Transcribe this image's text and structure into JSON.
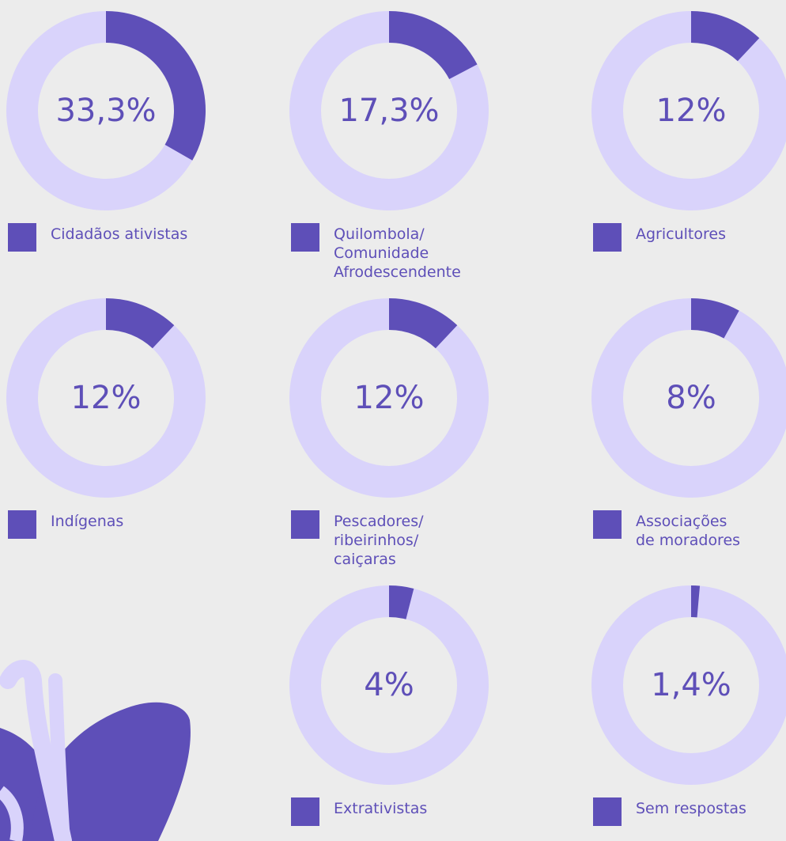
{
  "chart_data": [
    {
      "type": "donut",
      "categories": [
        "Cidadãos ativistas"
      ],
      "values": [
        33.3
      ],
      "value_labels": [
        "33,3%"
      ],
      "color": "#5e4fb8",
      "track_color": "#d9d3fb"
    },
    {
      "type": "donut",
      "categories": [
        "Quilombola/\nComunidade\nAfrodescendente"
      ],
      "values": [
        17.3
      ],
      "value_labels": [
        "17,3%"
      ],
      "color": "#5e4fb8",
      "track_color": "#d9d3fb"
    },
    {
      "type": "donut",
      "categories": [
        "Agricultores"
      ],
      "values": [
        12
      ],
      "value_labels": [
        "12%"
      ],
      "color": "#5e4fb8",
      "track_color": "#d9d3fb"
    },
    {
      "type": "donut",
      "categories": [
        "Indígenas"
      ],
      "values": [
        12
      ],
      "value_labels": [
        "12%"
      ],
      "color": "#5e4fb8",
      "track_color": "#d9d3fb"
    },
    {
      "type": "donut",
      "categories": [
        "Pescadores/\nribeirinhos/\ncaiçaras"
      ],
      "values": [
        12
      ],
      "value_labels": [
        "12%"
      ],
      "color": "#5e4fb8",
      "track_color": "#d9d3fb"
    },
    {
      "type": "donut",
      "categories": [
        "Associações\nde moradores"
      ],
      "values": [
        8
      ],
      "value_labels": [
        "8%"
      ],
      "color": "#5e4fb8",
      "track_color": "#d9d3fb"
    },
    {
      "type": "donut",
      "categories": [
        "Extrativistas"
      ],
      "values": [
        4
      ],
      "value_labels": [
        "4%"
      ],
      "color": "#5e4fb8",
      "track_color": "#d9d3fb"
    },
    {
      "type": "donut",
      "categories": [
        "Sem respostas"
      ],
      "values": [
        1.4
      ],
      "value_labels": [
        "1,4%"
      ],
      "color": "#5e4fb8",
      "track_color": "#d9d3fb"
    }
  ]
}
